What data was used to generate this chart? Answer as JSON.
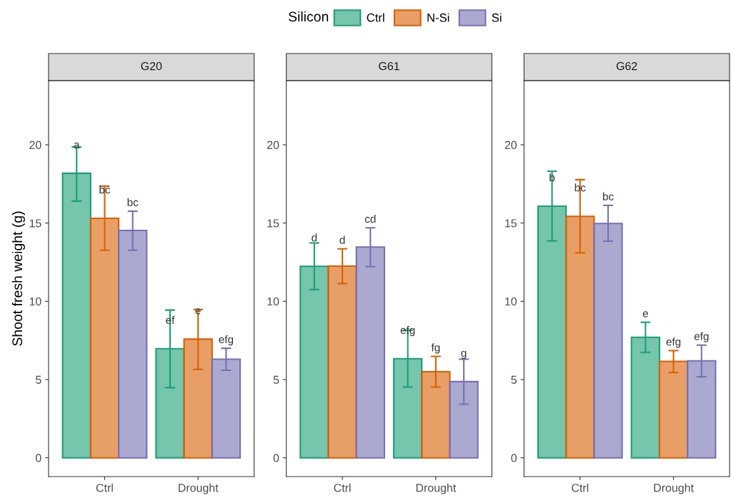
{
  "chart_data": [
    {
      "type": "bar",
      "title": "G20",
      "ylabel": "Shoot fresh weight (g)",
      "legend_title": "Silicon",
      "legend": "top",
      "grid": false,
      "categories": [
        "Ctrl",
        "Drought"
      ],
      "ylim": [
        -1.2,
        24.1
      ],
      "yticks": [
        0,
        5,
        10,
        15,
        20
      ],
      "series": [
        {
          "name": "Ctrl",
          "color": "#1b9e77",
          "values": [
            18.18,
            6.97
          ],
          "errors": [
            [
              16.4,
              19.86
            ],
            [
              4.48,
              9.44
            ]
          ],
          "value_labels": [
            "a",
            "ef"
          ]
        },
        {
          "name": "N-Si",
          "color": "#d95f02",
          "values": [
            15.3,
            7.58
          ],
          "errors": [
            [
              13.26,
              17.36
            ],
            [
              5.65,
              9.48
            ]
          ],
          "value_labels": [
            "bc",
            "e"
          ]
        },
        {
          "name": "Si",
          "color": "#7570b3",
          "values": [
            14.53,
            6.3
          ],
          "errors": [
            [
              13.26,
              15.76
            ],
            [
              5.59,
              7.0
            ]
          ],
          "value_labels": [
            "bc",
            "efg"
          ]
        }
      ]
    },
    {
      "type": "bar",
      "title": "G61",
      "categories": [
        "Ctrl",
        "Drought"
      ],
      "grid": false,
      "ylim": [
        -1.2,
        24.1
      ],
      "yticks": [
        0,
        5,
        10,
        15,
        20
      ],
      "series": [
        {
          "color": "#1b9e77",
          "values": [
            12.24,
            6.33
          ],
          "errors": [
            [
              10.75,
              13.73
            ],
            [
              4.52,
              8.15
            ]
          ],
          "value_labels": [
            "d",
            "efg"
          ]
        },
        {
          "color": "#d95f02",
          "values": [
            12.25,
            5.5
          ],
          "errors": [
            [
              11.13,
              13.35
            ],
            [
              4.52,
              6.48
            ]
          ],
          "value_labels": [
            "d",
            "fg"
          ]
        },
        {
          "color": "#7570b3",
          "values": [
            13.47,
            4.87
          ],
          "errors": [
            [
              12.21,
              14.7
            ],
            [
              3.43,
              6.3
            ]
          ],
          "value_labels": [
            "cd",
            "g"
          ]
        }
      ]
    },
    {
      "type": "bar",
      "title": "G62",
      "categories": [
        "Ctrl",
        "Drought"
      ],
      "grid": false,
      "ylim": [
        -1.2,
        24.1
      ],
      "yticks": [
        0,
        5,
        10,
        15,
        20
      ],
      "series": [
        {
          "color": "#1b9e77",
          "values": [
            16.08,
            7.7
          ],
          "errors": [
            [
              13.86,
              18.31
            ],
            [
              6.74,
              8.66
            ]
          ],
          "value_labels": [
            "b",
            "e"
          ]
        },
        {
          "color": "#d95f02",
          "values": [
            15.43,
            6.16
          ],
          "errors": [
            [
              13.1,
              17.77
            ],
            [
              5.45,
              6.85
            ]
          ],
          "value_labels": [
            "bc",
            "efg"
          ]
        },
        {
          "color": "#7570b3",
          "values": [
            14.97,
            6.2
          ],
          "errors": [
            [
              13.84,
              16.13
            ],
            [
              5.18,
              7.2
            ]
          ],
          "value_labels": [
            "bc",
            "efg"
          ]
        }
      ]
    }
  ]
}
